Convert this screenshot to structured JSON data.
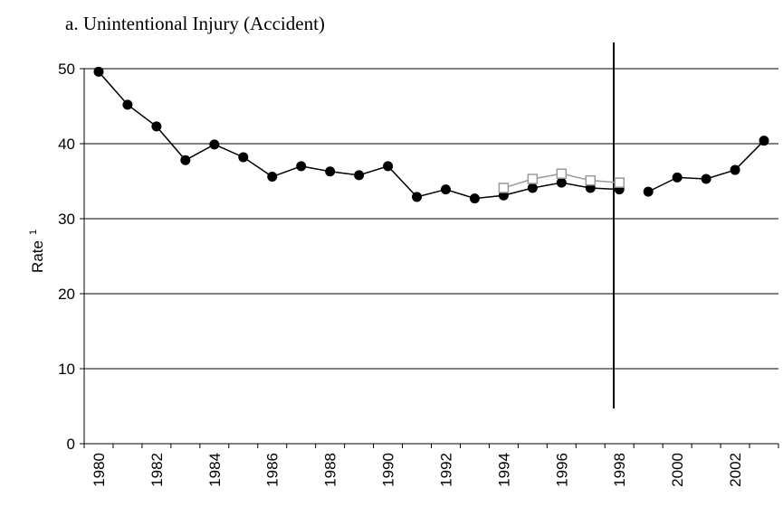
{
  "chart_data": {
    "type": "line",
    "title": "a.    Unintentional Injury (Accident)",
    "ylabel": "Rate",
    "ylabel_sup": "1",
    "categories": [
      "1980",
      null,
      "1982",
      null,
      "1984",
      null,
      "1986",
      null,
      "1988",
      null,
      "1990",
      null,
      "1992",
      null,
      "1994",
      null,
      "1996",
      null,
      "1998",
      null,
      "2000",
      null,
      "2002",
      null
    ],
    "series": [
      {
        "color": "#000000",
        "marker": "circle",
        "values": [
          49.6,
          45.2,
          42.3,
          37.8,
          39.9,
          38.2,
          35.6,
          37.0,
          36.3,
          35.8,
          37.0,
          32.9,
          33.9,
          32.7,
          33.1,
          34.1,
          34.8,
          34.1,
          33.9,
          null,
          null,
          null,
          null,
          null
        ]
      },
      {
        "color": "#000000",
        "marker": "circle",
        "values": [
          null,
          null,
          null,
          null,
          null,
          null,
          null,
          null,
          null,
          null,
          null,
          null,
          null,
          null,
          null,
          null,
          null,
          null,
          null,
          33.6,
          35.5,
          35.3,
          36.5,
          40.4
        ]
      },
      {
        "color": "#999999",
        "marker": "square",
        "values": [
          null,
          null,
          null,
          null,
          null,
          null,
          null,
          null,
          null,
          null,
          null,
          null,
          null,
          null,
          34.1,
          35.3,
          36.0,
          35.1,
          34.8,
          null,
          null,
          null,
          null,
          null
        ]
      }
    ],
    "ylim": [
      0,
      50
    ],
    "yticks": [
      0,
      10,
      20,
      30,
      40,
      50
    ],
    "grid": true
  }
}
